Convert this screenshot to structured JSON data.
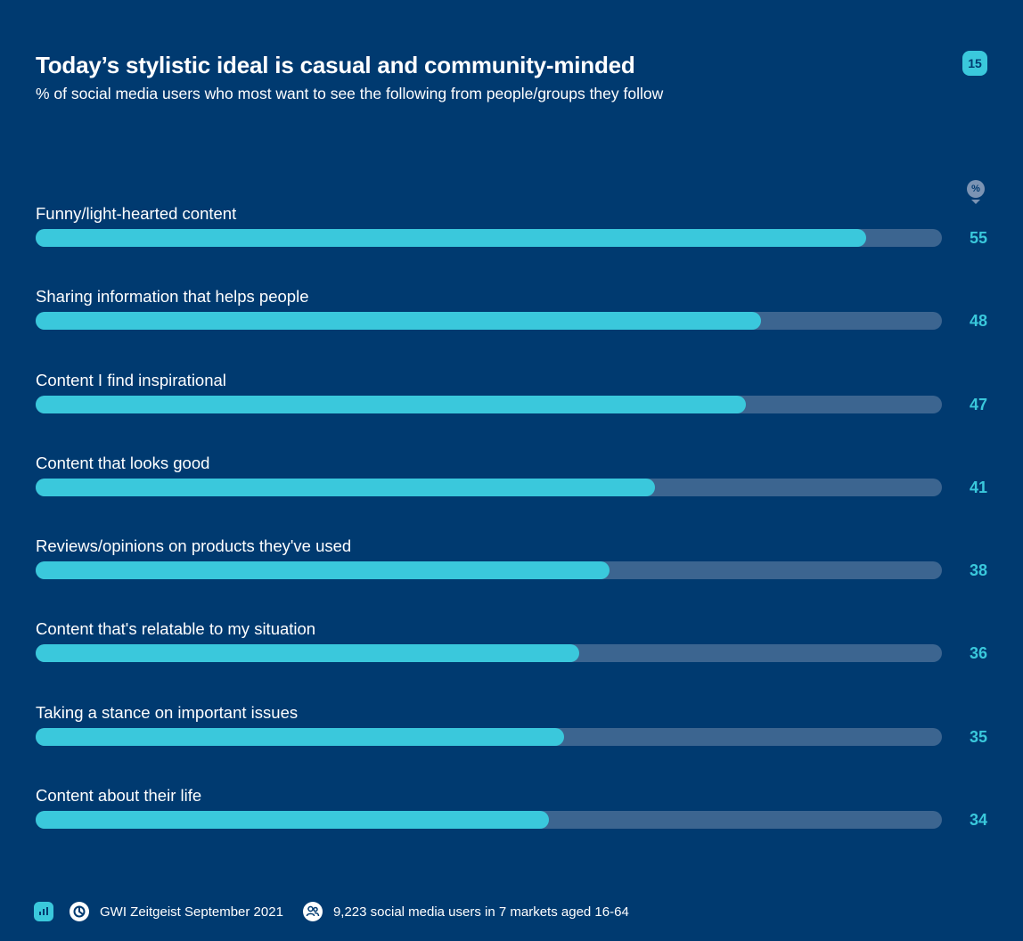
{
  "header": {
    "title": "Today’s stylistic ideal is casual and community-minded",
    "subtitle": "% of social media users who most want to see the following from people/groups they follow",
    "page_number": "15",
    "unit_marker": "%"
  },
  "colors": {
    "background": "#003a70",
    "bar_fill": "#3ac8dc",
    "bar_track": "#3c6590",
    "value_text": "#3ac8dc"
  },
  "chart_data": {
    "type": "bar",
    "orientation": "horizontal",
    "title": "Today’s stylistic ideal is casual and community-minded",
    "subtitle": "% of social media users who most want to see the following from people/groups they follow",
    "xlim": [
      0,
      60
    ],
    "unit": "%",
    "grid": false,
    "categories": [
      "Funny/light-hearted content",
      "Sharing information that helps people",
      "Content I find inspirational",
      "Content that looks good",
      "Reviews/opinions on products they've used",
      "Content that's relatable to my situation",
      "Taking a stance on important issues",
      "Content about their life"
    ],
    "values": [
      55,
      48,
      47,
      41,
      38,
      36,
      35,
      34
    ]
  },
  "footer": {
    "icons": [
      "chart-icon",
      "gwi-logo-icon",
      "people-icon"
    ],
    "source": "GWI Zeitgeist September 2021",
    "sample": "9,223 social media users in 7 markets aged 16-64"
  }
}
